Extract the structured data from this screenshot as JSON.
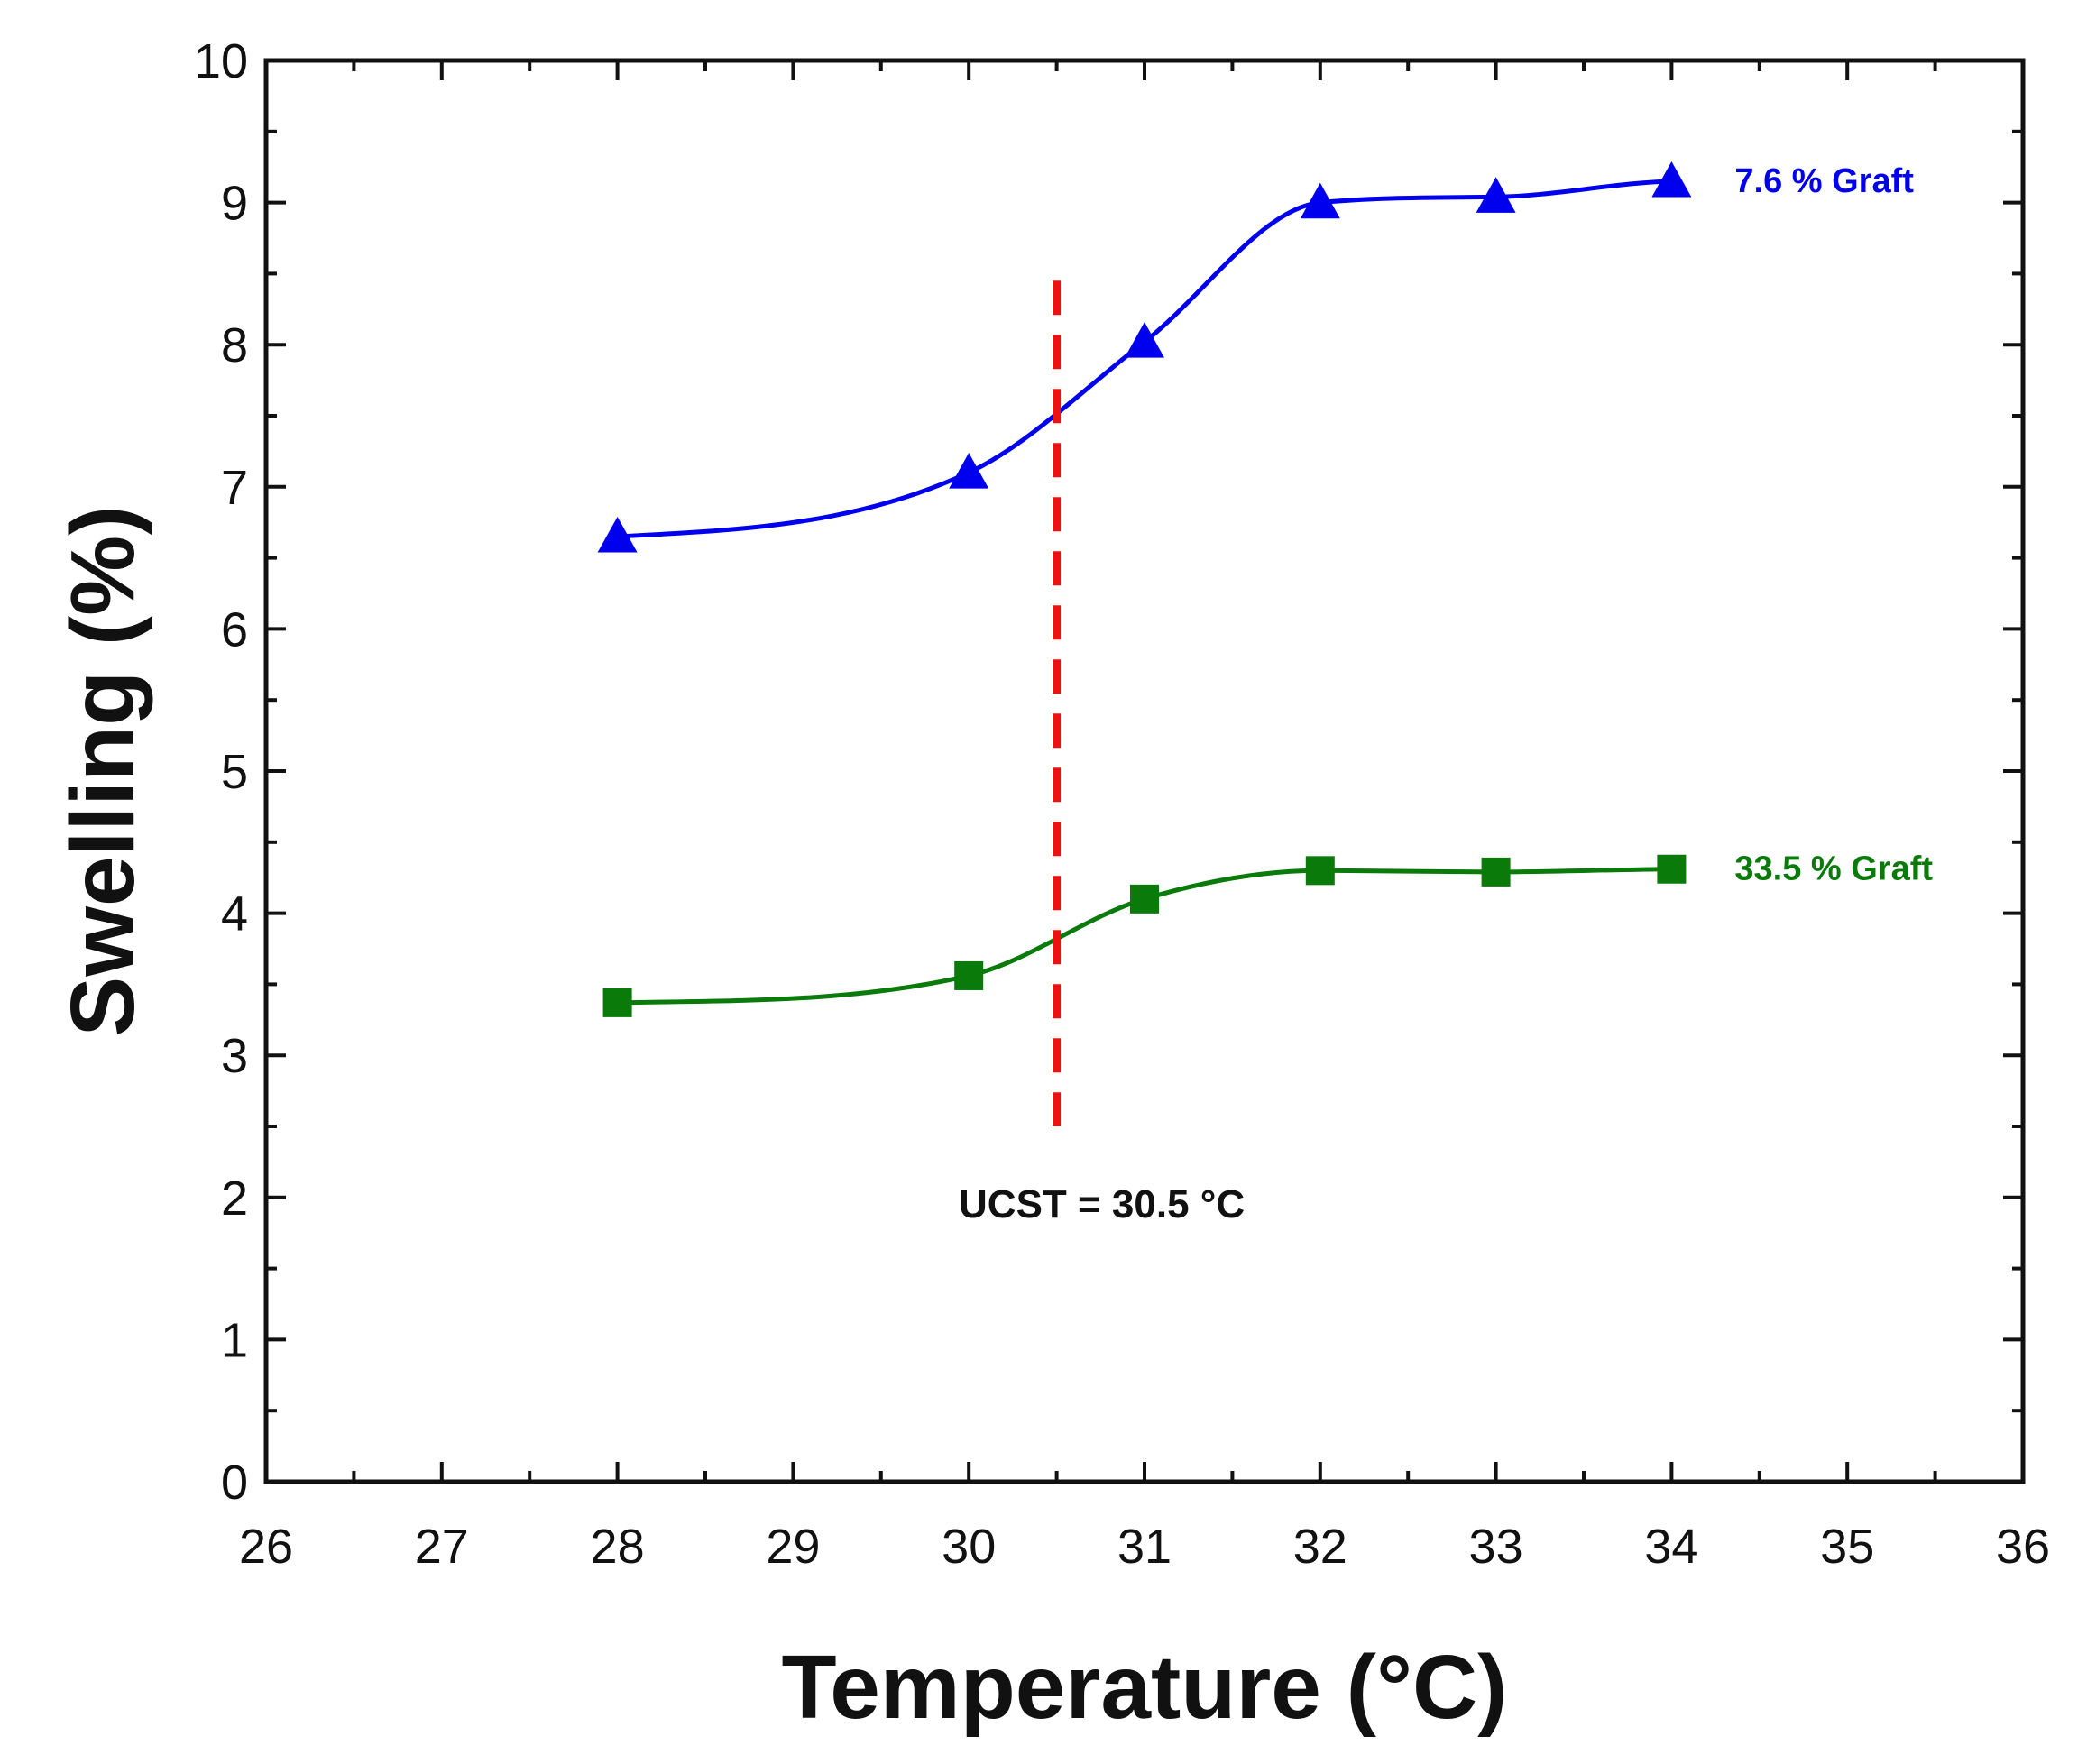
{
  "chart_data": {
    "type": "line",
    "title": "",
    "xlabel": "Temperature (°C)",
    "ylabel": "Swelling (%)",
    "xlim": [
      26,
      36
    ],
    "ylim": [
      0,
      10
    ],
    "xticks": [
      "26",
      "27",
      "28",
      "29",
      "30",
      "31",
      "32",
      "33",
      "34",
      "35",
      "36"
    ],
    "yticks": [
      "0",
      "1",
      "2",
      "3",
      "4",
      "5",
      "6",
      "7",
      "8",
      "9",
      "10"
    ],
    "grid": false,
    "series": [
      {
        "name": "7.6 % Graft",
        "color": "#0000ee",
        "marker": "triangle",
        "x": [
          28,
          30,
          31,
          32,
          33,
          34
        ],
        "y": [
          6.65,
          7.1,
          8.02,
          9.0,
          9.04,
          9.15
        ]
      },
      {
        "name": "33.5 % Graft",
        "color": "#0a7a0a",
        "marker": "square",
        "x": [
          28,
          30,
          31,
          32,
          33,
          34
        ],
        "y": [
          3.37,
          3.56,
          4.1,
          4.3,
          4.29,
          4.31
        ]
      }
    ],
    "reference_line": {
      "x": 30.5,
      "y_range": [
        2.5,
        8.45
      ],
      "color": "#ee1111",
      "style": "dashed",
      "label": "UCST = 30.5 °C"
    }
  }
}
